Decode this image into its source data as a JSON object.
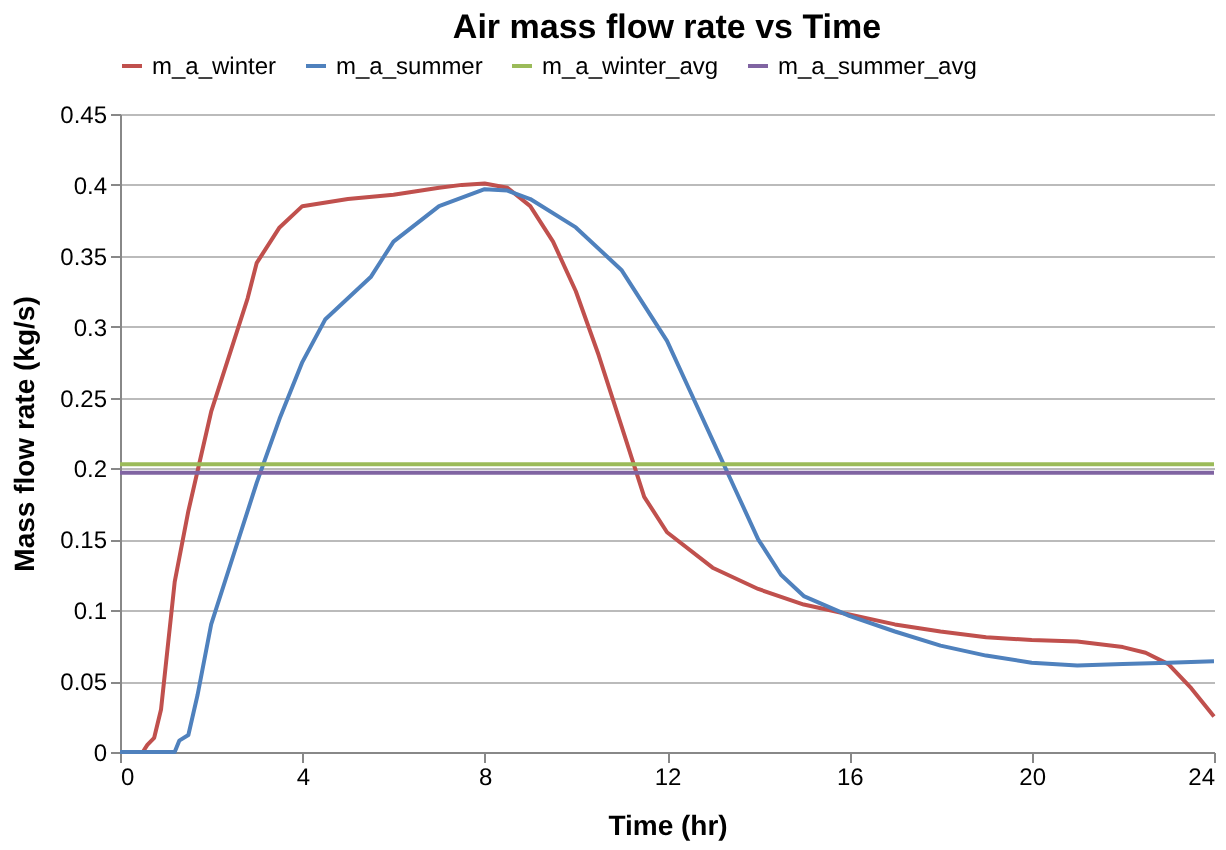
{
  "chart_data": {
    "type": "line",
    "title": "Air mass flow rate vs Time",
    "xlabel": "Time (hr)",
    "ylabel": "Mass flow rate (kg/s)",
    "xlim": [
      0,
      24
    ],
    "xticks": [
      0,
      4,
      8,
      12,
      16,
      20,
      24
    ],
    "ylim": [
      0,
      0.45
    ],
    "yticks": [
      0,
      0.05,
      0.1,
      0.15,
      0.2,
      0.25,
      0.3,
      0.35,
      0.4,
      0.45
    ],
    "grid": "y",
    "legend": "top",
    "marker": "none",
    "line_style": "solid",
    "series": [
      {
        "name": "m_a_winter",
        "color": "#c0504d",
        "x": [
          0,
          0.5,
          0.6,
          0.75,
          0.9,
          1.0,
          1.2,
          1.5,
          2.0,
          2.5,
          2.8,
          3.0,
          3.5,
          4,
          5,
          6,
          7,
          7.5,
          8,
          8.5,
          9,
          9.5,
          10,
          10.5,
          11,
          11.5,
          12,
          13,
          14,
          15,
          16,
          17,
          18,
          19,
          20,
          21,
          22,
          22.5,
          23,
          23.5,
          24
        ],
        "values": [
          0,
          0,
          0.005,
          0.01,
          0.03,
          0.06,
          0.12,
          0.17,
          0.24,
          0.29,
          0.32,
          0.345,
          0.37,
          0.385,
          0.39,
          0.393,
          0.398,
          0.4,
          0.401,
          0.398,
          0.385,
          0.36,
          0.325,
          0.28,
          0.23,
          0.18,
          0.155,
          0.13,
          0.115,
          0.104,
          0.097,
          0.09,
          0.085,
          0.081,
          0.079,
          0.078,
          0.074,
          0.07,
          0.062,
          0.045,
          0.025
        ]
      },
      {
        "name": "m_a_summer",
        "color": "#4f81bd",
        "x": [
          0,
          1.2,
          1.3,
          1.5,
          1.7,
          2.0,
          2.5,
          3,
          3.5,
          4,
          4.5,
          5,
          5.5,
          5.8,
          6,
          7,
          8,
          8.5,
          9,
          10,
          11,
          12,
          12.5,
          13,
          13.5,
          14,
          14.5,
          15,
          16,
          17,
          18,
          19,
          20,
          21,
          22,
          23,
          24
        ],
        "values": [
          0,
          0,
          0.008,
          0.012,
          0.04,
          0.09,
          0.14,
          0.19,
          0.235,
          0.275,
          0.305,
          0.32,
          0.335,
          0.35,
          0.36,
          0.385,
          0.397,
          0.396,
          0.39,
          0.37,
          0.34,
          0.29,
          0.255,
          0.22,
          0.185,
          0.15,
          0.125,
          0.11,
          0.096,
          0.085,
          0.075,
          0.068,
          0.063,
          0.061,
          0.062,
          0.063,
          0.064
        ]
      },
      {
        "name": "m_a_winter_avg",
        "color": "#9bbb59",
        "x": [
          0,
          24
        ],
        "values": [
          0.203,
          0.203
        ]
      },
      {
        "name": "m_a_summer_avg",
        "color": "#8064a2",
        "x": [
          0,
          24
        ],
        "values": [
          0.197,
          0.197
        ]
      }
    ]
  }
}
